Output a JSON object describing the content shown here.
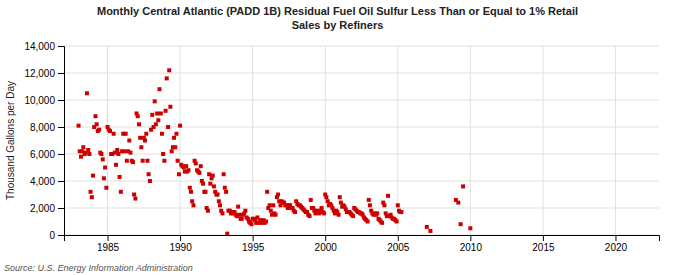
{
  "chart_data": {
    "type": "scatter",
    "title": "Monthly Central Atlantic (PADD 1B) Residual Fuel Oil Sulfur Less Than or Equal to 1% Retail\nSales by Refiners",
    "ylabel": "Thousand Gallons per Day",
    "annotations": [
      "Source: U.S. Energy Information Administration"
    ],
    "color": "#cc0000",
    "marker": "square",
    "grid": true,
    "xlim": [
      1982,
      2023
    ],
    "ylim": [
      0,
      14000
    ],
    "xticks": [
      1985,
      1990,
      1995,
      2000,
      2005,
      2010,
      2015,
      2020
    ],
    "yticks": [
      0,
      {
        "value": 2000,
        "label": "2,000"
      },
      {
        "value": 4000,
        "label": "4,000"
      },
      {
        "value": 6000,
        "label": "6,000"
      },
      {
        "value": 8000,
        "label": "8,000"
      },
      {
        "value": 10000,
        "label": "10,000"
      },
      {
        "value": 12000,
        "label": "12,000"
      },
      {
        "value": 14000,
        "label": "14,000"
      }
    ],
    "x": [
      1983.0,
      1983.08,
      1983.17,
      1983.25,
      1983.33,
      1983.42,
      1983.5,
      1983.58,
      1983.67,
      1983.75,
      1983.83,
      1983.92,
      1984.0,
      1984.08,
      1984.17,
      1984.25,
      1984.33,
      1984.42,
      1984.5,
      1984.58,
      1984.67,
      1984.75,
      1984.83,
      1984.92,
      1985.0,
      1985.08,
      1985.17,
      1985.25,
      1985.33,
      1985.42,
      1985.5,
      1985.58,
      1985.67,
      1985.75,
      1985.83,
      1985.92,
      1986.0,
      1986.08,
      1986.17,
      1986.25,
      1986.33,
      1986.42,
      1986.5,
      1986.58,
      1986.67,
      1986.75,
      1986.83,
      1986.92,
      1987.0,
      1987.08,
      1987.17,
      1987.25,
      1987.33,
      1987.42,
      1987.5,
      1987.58,
      1987.67,
      1987.75,
      1987.83,
      1987.92,
      1988.0,
      1988.08,
      1988.17,
      1988.25,
      1988.33,
      1988.42,
      1988.5,
      1988.58,
      1988.67,
      1988.75,
      1988.83,
      1988.92,
      1989.0,
      1989.08,
      1989.17,
      1989.25,
      1989.33,
      1989.42,
      1989.5,
      1989.58,
      1989.67,
      1989.75,
      1989.83,
      1989.92,
      1990.0,
      1990.08,
      1990.17,
      1990.25,
      1990.33,
      1990.42,
      1990.5,
      1990.58,
      1990.67,
      1990.75,
      1990.83,
      1990.92,
      1991.0,
      1991.08,
      1991.17,
      1991.25,
      1991.33,
      1991.42,
      1991.5,
      1991.58,
      1991.67,
      1991.75,
      1991.83,
      1991.92,
      1992.0,
      1992.08,
      1992.17,
      1992.25,
      1992.33,
      1992.42,
      1992.5,
      1992.58,
      1992.67,
      1992.75,
      1992.83,
      1992.92,
      1993.0,
      1993.08,
      1993.17,
      1993.25,
      1993.33,
      1993.42,
      1993.5,
      1993.58,
      1993.67,
      1993.75,
      1993.83,
      1993.92,
      1994.0,
      1994.08,
      1994.17,
      1994.25,
      1994.33,
      1994.42,
      1994.5,
      1994.58,
      1994.67,
      1994.75,
      1994.83,
      1994.92,
      1995.0,
      1995.08,
      1995.17,
      1995.25,
      1995.33,
      1995.42,
      1995.5,
      1995.58,
      1995.67,
      1995.75,
      1995.83,
      1995.92,
      1996.0,
      1996.08,
      1996.17,
      1996.25,
      1996.33,
      1996.42,
      1996.5,
      1996.58,
      1996.67,
      1996.75,
      1996.83,
      1996.92,
      1997.0,
      1997.08,
      1997.17,
      1997.25,
      1997.33,
      1997.42,
      1997.5,
      1997.58,
      1997.67,
      1997.75,
      1997.83,
      1997.92,
      1998.0,
      1998.08,
      1998.17,
      1998.25,
      1998.33,
      1998.42,
      1998.5,
      1998.58,
      1998.67,
      1998.75,
      1998.83,
      1998.92,
      1999.0,
      1999.08,
      1999.17,
      1999.25,
      1999.33,
      1999.42,
      1999.5,
      1999.58,
      1999.67,
      1999.75,
      1999.83,
      1999.92,
      2000.0,
      2000.08,
      2000.17,
      2000.25,
      2000.33,
      2000.42,
      2000.5,
      2000.58,
      2000.67,
      2000.75,
      2000.83,
      2000.92,
      2001.0,
      2001.08,
      2001.17,
      2001.25,
      2001.33,
      2001.42,
      2001.5,
      2001.58,
      2001.67,
      2001.75,
      2001.83,
      2001.92,
      2002.0,
      2002.08,
      2002.17,
      2002.25,
      2002.33,
      2002.42,
      2002.5,
      2002.58,
      2002.67,
      2002.75,
      2002.83,
      2002.92,
      2003.0,
      2003.08,
      2003.17,
      2003.25,
      2003.33,
      2003.42,
      2003.5,
      2003.58,
      2003.67,
      2003.75,
      2003.83,
      2003.92,
      2004.0,
      2004.08,
      2004.17,
      2004.25,
      2004.33,
      2004.42,
      2004.5,
      2004.58,
      2004.67,
      2004.75,
      2004.83,
      2004.92,
      2005.0,
      2005.08,
      2005.17,
      2005.25,
      2007.0,
      2007.25,
      2009.0,
      2009.17,
      2009.33,
      2009.5,
      2010.0
    ],
    "values": [
      8100,
      6200,
      5800,
      6200,
      6500,
      6000,
      6100,
      10500,
      6300,
      6000,
      3200,
      2800,
      4400,
      8000,
      8800,
      8200,
      7700,
      7800,
      6100,
      6000,
      5600,
      4200,
      5000,
      3500,
      8000,
      7800,
      7700,
      6000,
      6000,
      7500,
      6100,
      5200,
      6300,
      6000,
      4300,
      3200,
      6200,
      7500,
      6200,
      7500,
      5500,
      6200,
      7000,
      6100,
      5500,
      5400,
      3000,
      2700,
      9000,
      8800,
      8200,
      7200,
      6500,
      5500,
      7200,
      7000,
      7500,
      5500,
      4500,
      4000,
      7800,
      8900,
      8000,
      9900,
      8200,
      9000,
      8500,
      10800,
      9000,
      7500,
      6000,
      5500,
      9200,
      11600,
      8000,
      12200,
      9500,
      6200,
      6500,
      7200,
      6500,
      7500,
      5500,
      4500,
      8100,
      5200,
      5100,
      5000,
      4700,
      5100,
      4700,
      4800,
      3500,
      3200,
      2500,
      2200,
      5500,
      5300,
      4800,
      4700,
      4600,
      5100,
      4000,
      3800,
      3200,
      3200,
      2000,
      1800,
      4500,
      3800,
      4200,
      4400,
      3600,
      3200,
      3000,
      3000,
      2500,
      2200,
      1800,
      1600,
      4500,
      3500,
      3200,
      100,
      1800,
      1800,
      1600,
      1700,
      1600,
      1700,
      1500,
      1400,
      2100,
      1500,
      1200,
      1200,
      1500,
      1600,
      1800,
      1300,
      1200,
      1000,
      900,
      800,
      1200,
      1200,
      1100,
      900,
      1300,
      900,
      1100,
      900,
      1000,
      1100,
      900,
      1000,
      3200,
      2000,
      2200,
      1800,
      1500,
      2200,
      1600,
      1500,
      2800,
      3000,
      2500,
      2200,
      2500,
      2400,
      2400,
      2200,
      2200,
      2000,
      2200,
      2200,
      2000,
      2000,
      1800,
      1700,
      2500,
      2300,
      2200,
      2200,
      2100,
      2000,
      1900,
      1800,
      1700,
      1700,
      1500,
      1400,
      2600,
      2000,
      2000,
      1800,
      1600,
      1800,
      1700,
      1600,
      1800,
      2000,
      1700,
      1600,
      3000,
      2800,
      2500,
      2200,
      2300,
      2200,
      2000,
      1800,
      1600,
      1800,
      1700,
      1500,
      2800,
      2400,
      2100,
      2200,
      2100,
      1900,
      1700,
      1700,
      1700,
      1600,
      1500,
      1400,
      2000,
      1900,
      1800,
      1700,
      1700,
      1600,
      1600,
      1500,
      1300,
      1200,
      1100,
      1000,
      2600,
      2200,
      1800,
      1600,
      1500,
      1600,
      1500,
      1600,
      1200,
      1100,
      1000,
      900,
      2400,
      2200,
      1600,
      1400,
      2900,
      1400,
      1500,
      1300,
      1200,
      1200,
      1100,
      1000,
      2200,
      1800,
      1700,
      1700,
      600,
      300,
      2600,
      2400,
      800,
      3600,
      500
    ]
  }
}
